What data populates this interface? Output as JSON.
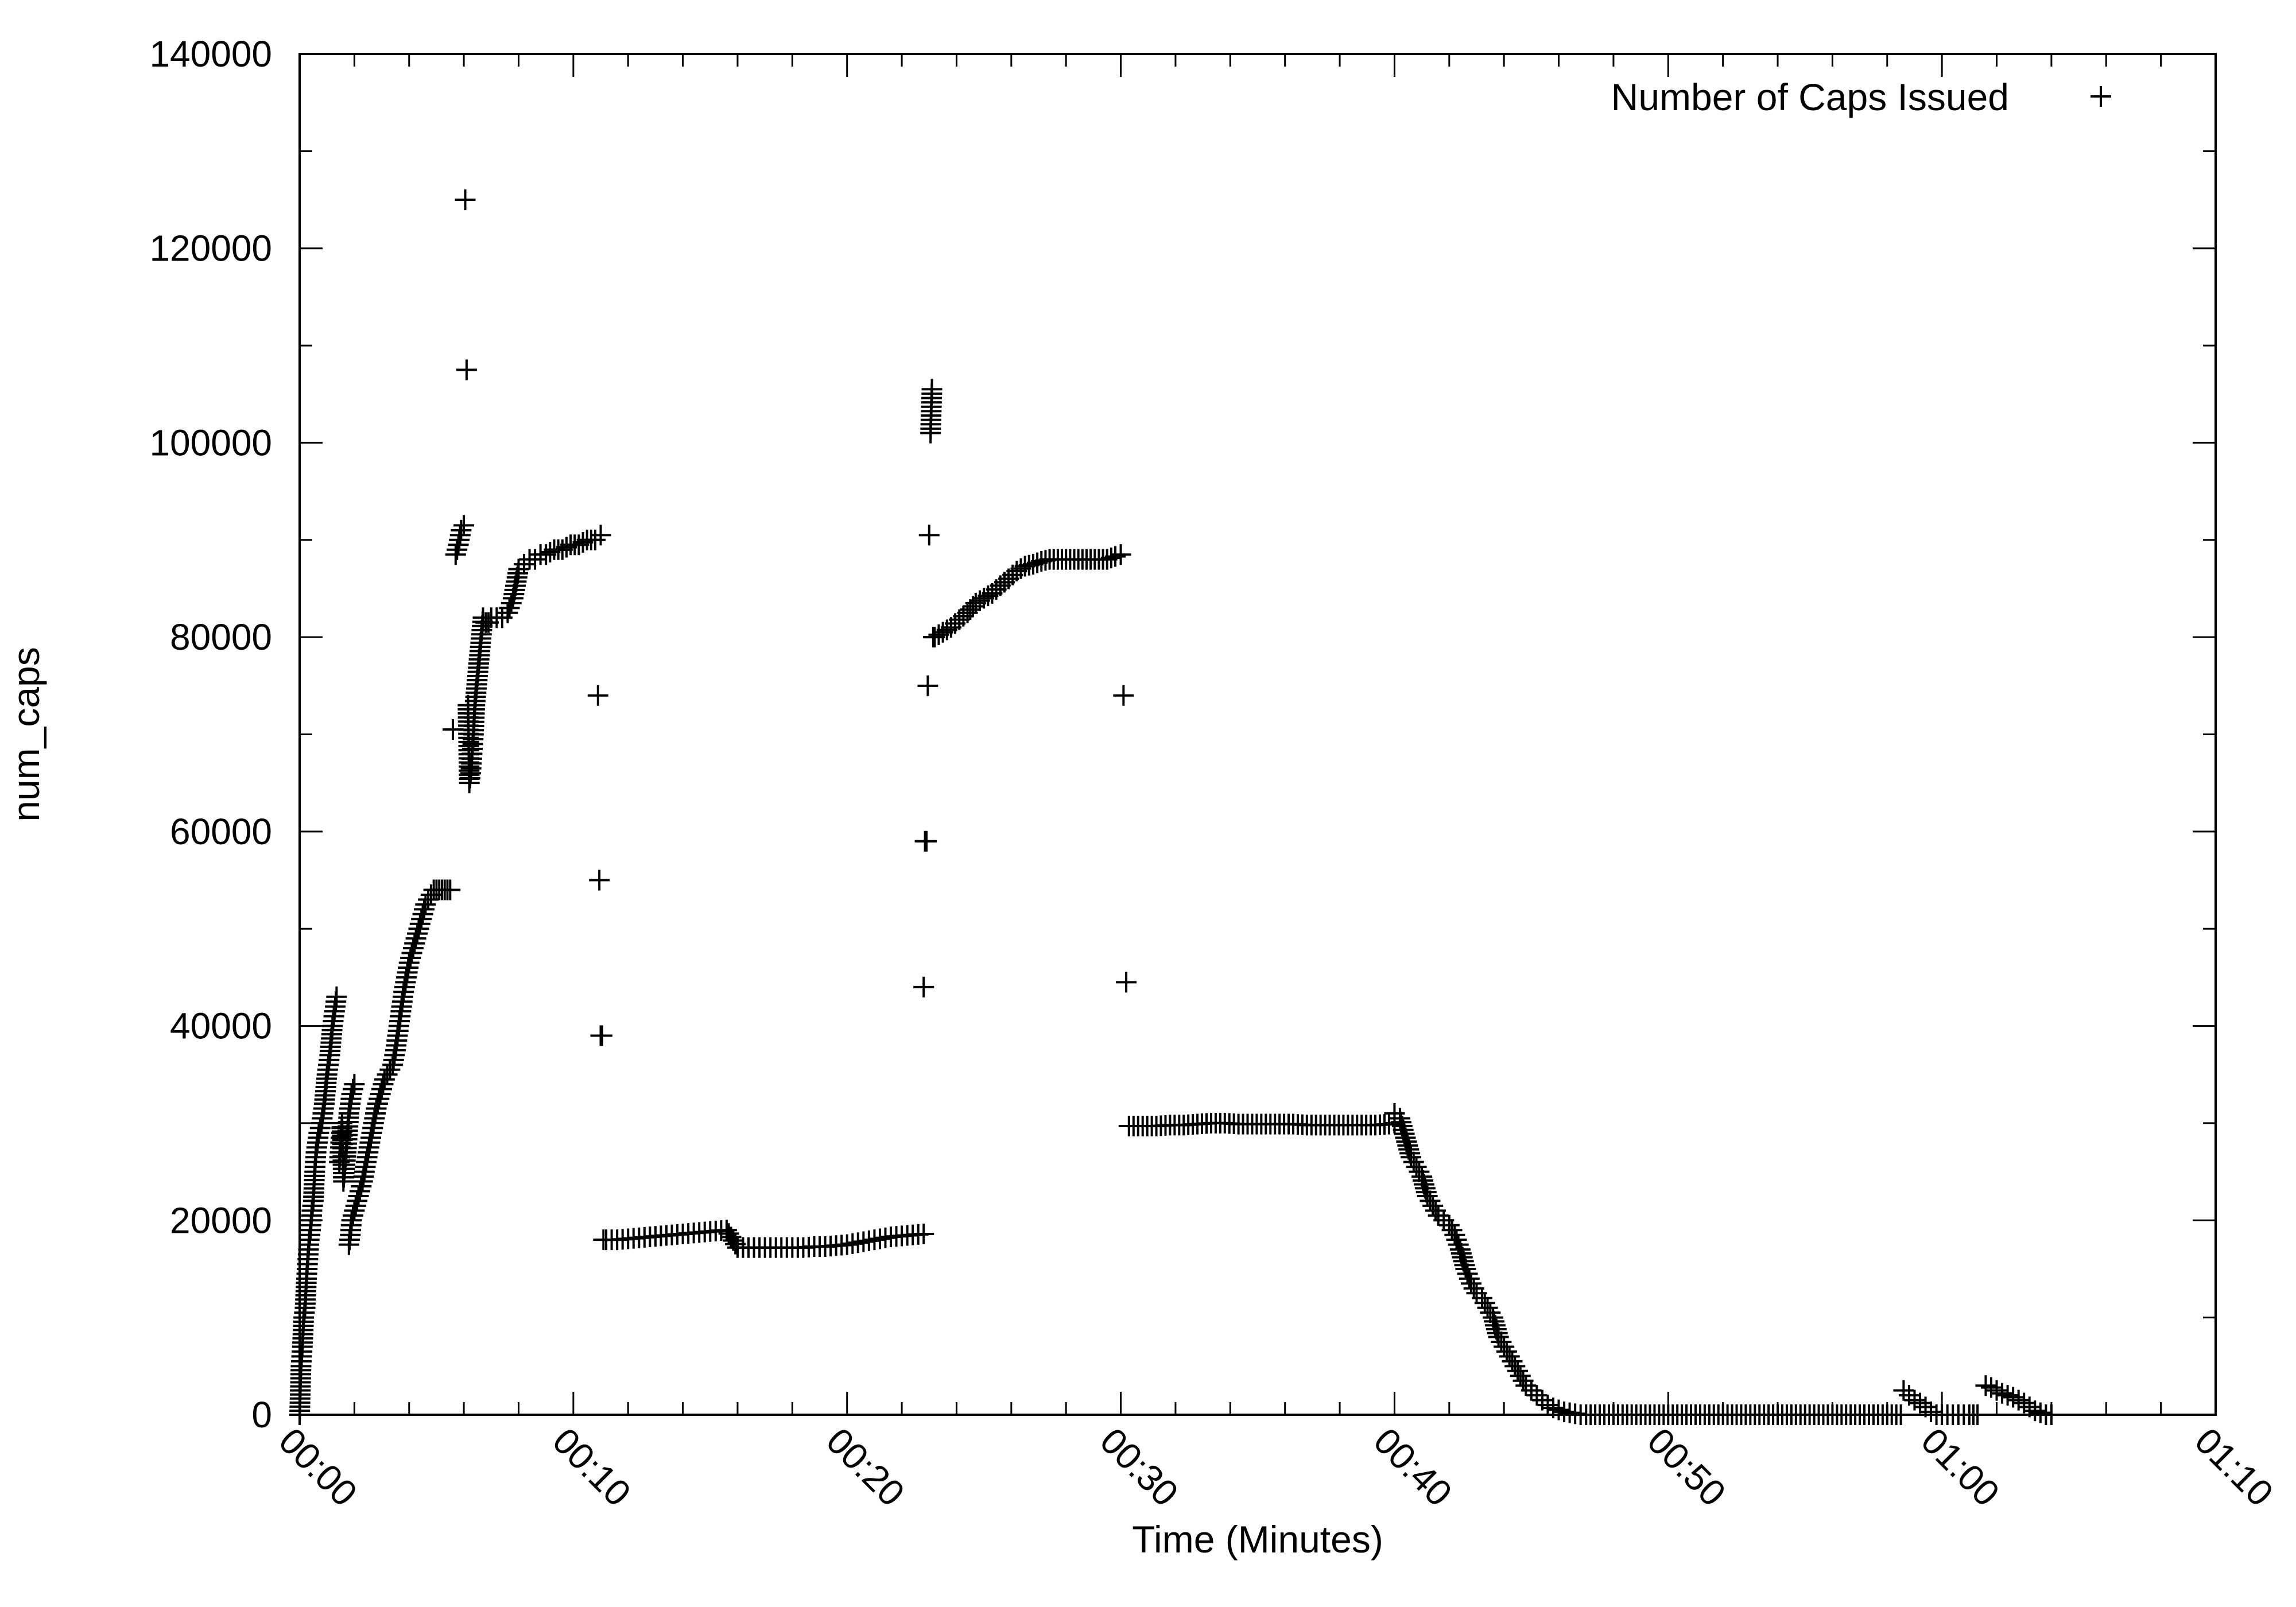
{
  "chart_data": {
    "type": "scatter",
    "title": "",
    "xlabel": "Time (Minutes)",
    "ylabel": "num_caps",
    "xlim": [
      0,
      70
    ],
    "ylim": [
      0,
      140000
    ],
    "x_ticks": [
      0,
      10,
      20,
      30,
      40,
      50,
      60,
      70
    ],
    "x_tick_labels": [
      "00:00",
      "00:10",
      "00:20",
      "00:30",
      "00:40",
      "00:50",
      "01:00",
      "01:10"
    ],
    "y_ticks": [
      0,
      20000,
      40000,
      60000,
      80000,
      100000,
      120000,
      140000
    ],
    "y_tick_labels": [
      "0",
      "20000",
      "40000",
      "60000",
      "80000",
      "100000",
      "120000",
      "140000"
    ],
    "y_minor_step": 10000,
    "x_minor_step": 2,
    "grid": false,
    "legend": {
      "position": "top-right"
    },
    "marker": "+",
    "marker_color": "#000000",
    "series": [
      {
        "name": "Number of Caps Issued",
        "segments": [
          {
            "x": [
              0,
              0.05,
              0.1,
              0.15,
              0.2,
              0.25,
              0.3,
              0.35,
              0.4,
              0.45,
              0.5,
              0.55,
              0.6,
              0.7,
              0.8,
              0.9,
              1.0,
              1.1,
              1.2,
              1.3,
              1.35,
              1.45,
              1.5,
              1.55,
              1.6,
              1.7,
              1.8,
              1.9,
              2.0
            ],
            "y": [
              0,
              5000,
              7000,
              10000,
              11000,
              14000,
              16000,
              18000,
              19000,
              21000,
              22000,
              25000,
              27000,
              29000,
              30000,
              32000,
              35000,
              37000,
              40000,
              42000,
              43000,
              26000,
              28000,
              30000,
              24000,
              27000,
              31000,
              33000,
              34000
            ]
          },
          {
            "x": [
              1.8,
              1.85,
              1.9,
              2.0,
              2.1,
              2.2,
              2.3,
              2.4,
              2.5,
              2.6,
              2.7,
              2.8,
              2.9,
              3.0,
              3.1,
              3.2,
              3.3,
              3.4,
              3.5,
              3.6,
              3.7,
              3.8,
              3.9,
              4.0,
              4.1,
              4.2,
              4.3,
              4.4,
              4.5,
              4.6,
              4.7,
              4.8,
              4.9,
              5.0,
              5.1,
              5.2,
              5.3,
              5.4,
              5.5
            ],
            "y": [
              17500,
              18500,
              20000,
              21000,
              22000,
              23000,
              24000,
              25500,
              27000,
              28500,
              30000,
              31500,
              32500,
              33500,
              34500,
              35000,
              35500,
              36000,
              37500,
              39500,
              41500,
              43500,
              45000,
              46500,
              47500,
              48500,
              49500,
              50500,
              51500,
              52500,
              53000,
              53500,
              54000,
              54000,
              54000,
              54000,
              54000,
              54000,
              54000
            ]
          },
          {
            "x": [
              5.6,
              5.7,
              5.8,
              5.9,
              6.0,
              6.05,
              6.1,
              6.15,
              6.2,
              6.25,
              6.3,
              6.35,
              6.4,
              6.5,
              6.6,
              6.7,
              6.8,
              6.9,
              7.0,
              7.2,
              7.4,
              7.6,
              7.8,
              8.0,
              8.2,
              8.4,
              8.6,
              8.8,
              9.0,
              9.3,
              9.6,
              9.9,
              10.2,
              10.5,
              10.8,
              11.0
            ],
            "y": [
              70500,
              88500,
              89500,
              91000,
              91500,
              125000,
              107500,
              73000,
              65000,
              66000,
              68000,
              70000,
              73000,
              76000,
              79000,
              82000,
              81500,
              81500,
              82000,
              82000,
              82000,
              82500,
              84000,
              87000,
              87500,
              88000,
              88000,
              88500,
              88500,
              89000,
              89000,
              89500,
              89500,
              90000,
              90000,
              90500
            ]
          },
          {
            "x": [
              10.9,
              10.95,
              11.0,
              11.05,
              11.1
            ],
            "y": [
              74000,
              55000,
              39000,
              39000,
              18000
            ]
          },
          {
            "x": [
              11.2,
              11.6,
              12.0,
              12.4,
              12.8,
              13.2,
              13.6,
              14.0,
              14.4,
              14.8,
              15.2,
              15.6,
              16.0,
              16.4,
              16.8,
              17.2,
              17.6,
              18.0,
              18.4,
              18.8,
              19.2,
              19.6,
              20.0,
              20.4,
              20.8,
              21.2,
              21.6,
              22.0,
              22.4,
              22.8
            ],
            "y": [
              18000,
              18000,
              18100,
              18200,
              18300,
              18400,
              18500,
              18600,
              18700,
              18800,
              18900,
              19000,
              17200,
              17200,
              17200,
              17200,
              17200,
              17200,
              17200,
              17300,
              17300,
              17400,
              17500,
              17700,
              17900,
              18100,
              18300,
              18400,
              18500,
              18600
            ]
          },
          {
            "x": [
              22.8,
              22.85,
              22.9,
              22.95,
              23.0,
              23.05,
              23.1,
              23.15
            ],
            "y": [
              44000,
              59000,
              59000,
              75000,
              90500,
              101000,
              105500,
              80000
            ]
          },
          {
            "x": [
              23.2,
              23.5,
              23.8,
              24.1,
              24.4,
              24.7,
              25.0,
              25.3,
              25.6,
              25.9,
              26.2,
              26.5,
              26.8,
              27.1,
              27.4,
              27.7,
              28.0,
              28.3,
              28.6,
              28.9,
              29.2,
              29.5,
              29.8,
              30.0
            ],
            "y": [
              80000,
              80500,
              81000,
              81800,
              82500,
              83500,
              84000,
              84500,
              85300,
              86000,
              86800,
              87300,
              87500,
              87800,
              88000,
              88000,
              88000,
              88000,
              88000,
              88000,
              88000,
              88000,
              88300,
              88500
            ]
          },
          {
            "x": [
              30.1,
              30.2,
              30.3
            ],
            "y": [
              74000,
              44500,
              29700
            ]
          },
          {
            "x": [
              30.3,
              30.8,
              31.3,
              31.8,
              32.3,
              32.8,
              33.3,
              33.8,
              34.3,
              34.8,
              35.3,
              35.8,
              36.3,
              36.8,
              37.3,
              37.8,
              38.3,
              38.8,
              39.3,
              39.8,
              40.0
            ],
            "y": [
              29700,
              29700,
              29700,
              29800,
              29800,
              29900,
              30000,
              30000,
              29900,
              29900,
              29900,
              29900,
              29900,
              29800,
              29800,
              29800,
              29800,
              29800,
              29800,
              29900,
              30000
            ]
          },
          {
            "x": [
              40.0,
              40.2,
              40.4,
              40.6,
              40.8,
              41.0,
              41.2,
              41.4,
              41.6,
              41.8,
              42.0,
              42.2,
              42.4,
              42.6,
              42.8,
              43.0,
              43.2,
              43.4,
              43.6,
              43.8,
              44.0,
              44.2,
              44.4,
              44.6,
              44.8,
              45.0,
              45.2,
              45.4,
              45.6,
              45.8,
              46.0,
              46.2,
              46.4,
              46.6,
              46.8
            ],
            "y": [
              31000,
              30500,
              28500,
              26500,
              25500,
              24500,
              22500,
              21500,
              20500,
              20000,
              19500,
              18500,
              17000,
              15000,
              13500,
              12500,
              12000,
              11000,
              10000,
              8000,
              7000,
              6000,
              5000,
              4000,
              3000,
              2500,
              2000,
              1500,
              1000,
              700,
              500,
              300,
              200,
              100,
              0
            ]
          },
          {
            "x": [
              47.0,
              48.0,
              49.0,
              50.0,
              51.0,
              52.0,
              53.0,
              54.0,
              55.0,
              56.0,
              57.0,
              58.0,
              58.5
            ],
            "y": [
              0,
              0,
              0,
              0,
              0,
              0,
              0,
              0,
              0,
              0,
              0,
              0,
              0
            ]
          },
          {
            "x": [
              58.6,
              58.8,
              59.0,
              59.2,
              59.4,
              59.6
            ],
            "y": [
              2500,
              2000,
              1500,
              1200,
              800,
              300
            ]
          },
          {
            "x": [
              59.8,
              60.2,
              60.6,
              61.0,
              61.3
            ],
            "y": [
              0,
              0,
              0,
              0,
              0
            ]
          },
          {
            "x": [
              61.6,
              61.8,
              62.0,
              62.2,
              62.4,
              62.6,
              62.8,
              63.0,
              63.2,
              63.4,
              63.6,
              63.8,
              64.0
            ],
            "y": [
              3000,
              2800,
              2500,
              2200,
              2000,
              1800,
              1500,
              1200,
              800,
              400,
              200,
              0,
              0
            ]
          }
        ]
      }
    ]
  }
}
